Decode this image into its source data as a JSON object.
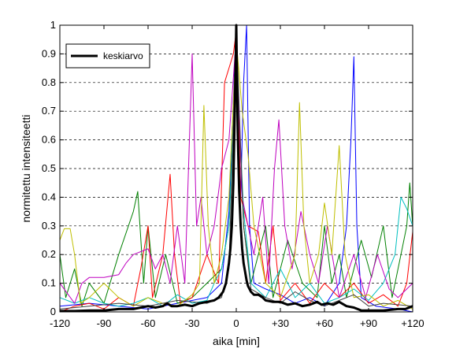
{
  "chart_data": {
    "type": "line",
    "xlabel": "aika [min]",
    "ylabel": "normitettu intensiteetti",
    "xlim": [
      -120,
      120
    ],
    "ylim": [
      0,
      1
    ],
    "x_ticks": [
      {
        "value": -120,
        "label": "-120"
      },
      {
        "value": -90,
        "label": "-90"
      },
      {
        "value": -60,
        "label": "-60"
      },
      {
        "value": -30,
        "label": "-30"
      },
      {
        "value": 0,
        "label": "0"
      },
      {
        "value": 30,
        "label": "+30"
      },
      {
        "value": 60,
        "label": "+60"
      },
      {
        "value": 90,
        "label": "+90"
      },
      {
        "value": 120,
        "label": "+120"
      }
    ],
    "y_ticks": [
      {
        "value": 0,
        "label": "0"
      },
      {
        "value": 0.1,
        "label": "0.1"
      },
      {
        "value": 0.2,
        "label": "0.2"
      },
      {
        "value": 0.3,
        "label": "0.3"
      },
      {
        "value": 0.4,
        "label": "0.4"
      },
      {
        "value": 0.5,
        "label": "0.5"
      },
      {
        "value": 0.6,
        "label": "0.6"
      },
      {
        "value": 0.7,
        "label": "0.7"
      },
      {
        "value": 0.8,
        "label": "0.8"
      },
      {
        "value": 0.9,
        "label": "0.9"
      },
      {
        "value": 1,
        "label": "1"
      }
    ],
    "grid": "horizontal dashed",
    "legend": {
      "placement": "top-left",
      "entries": [
        {
          "label": "keskiarvo",
          "color": "#000000"
        }
      ]
    },
    "mean_series": {
      "name": "keskiarvo",
      "color": "#000000",
      "points": [
        [
          -120,
          0.003
        ],
        [
          -110,
          0.003
        ],
        [
          -100,
          0.005
        ],
        [
          -90,
          0.005
        ],
        [
          -80,
          0.01
        ],
        [
          -70,
          0.01
        ],
        [
          -65,
          0.015
        ],
        [
          -60,
          0.02
        ],
        [
          -55,
          0.015
        ],
        [
          -50,
          0.02
        ],
        [
          -47,
          0.03
        ],
        [
          -44,
          0.02
        ],
        [
          -40,
          0.02
        ],
        [
          -35,
          0.025
        ],
        [
          -30,
          0.02
        ],
        [
          -25,
          0.03
        ],
        [
          -20,
          0.035
        ],
        [
          -15,
          0.04
        ],
        [
          -12,
          0.05
        ],
        [
          -9,
          0.07
        ],
        [
          -7,
          0.1
        ],
        [
          -5,
          0.17
        ],
        [
          -4,
          0.22
        ],
        [
          -3,
          0.3
        ],
        [
          -2,
          0.45
        ],
        [
          -1,
          0.7
        ],
        [
          0,
          1.0
        ],
        [
          1,
          0.62
        ],
        [
          2,
          0.42
        ],
        [
          3,
          0.3
        ],
        [
          4,
          0.22
        ],
        [
          5,
          0.17
        ],
        [
          6,
          0.14
        ],
        [
          7,
          0.11
        ],
        [
          8,
          0.09
        ],
        [
          10,
          0.07
        ],
        [
          12,
          0.06
        ],
        [
          15,
          0.06
        ],
        [
          18,
          0.05
        ],
        [
          20,
          0.04
        ],
        [
          25,
          0.035
        ],
        [
          30,
          0.035
        ],
        [
          35,
          0.025
        ],
        [
          40,
          0.03
        ],
        [
          45,
          0.02
        ],
        [
          50,
          0.025
        ],
        [
          55,
          0.035
        ],
        [
          58,
          0.025
        ],
        [
          62,
          0.03
        ],
        [
          66,
          0.025
        ],
        [
          70,
          0.035
        ],
        [
          75,
          0.02
        ],
        [
          80,
          0.015
        ],
        [
          85,
          0.005
        ],
        [
          90,
          0.005
        ],
        [
          100,
          0.005
        ],
        [
          110,
          0.01
        ],
        [
          115,
          0.01
        ],
        [
          120,
          0.02
        ]
      ]
    },
    "individual_series": [
      {
        "color": "#0000ff",
        "points": [
          [
            -120,
            0.02
          ],
          [
            -100,
            0.03
          ],
          [
            -80,
            0.02
          ],
          [
            -60,
            0.01
          ],
          [
            -40,
            0.03
          ],
          [
            -20,
            0.05
          ],
          [
            -10,
            0.1
          ],
          [
            -5,
            0.35
          ],
          [
            0,
            1.0
          ],
          [
            3,
            0.4
          ],
          [
            5,
            0.8
          ],
          [
            7,
            1.0
          ],
          [
            9,
            0.3
          ],
          [
            12,
            0.1
          ],
          [
            20,
            0.08
          ],
          [
            30,
            0.06
          ],
          [
            40,
            0.03
          ],
          [
            50,
            0.05
          ],
          [
            60,
            0.02
          ],
          [
            70,
            0.1
          ],
          [
            75,
            0.3
          ],
          [
            78,
            0.6
          ],
          [
            80,
            0.89
          ],
          [
            82,
            0.3
          ],
          [
            85,
            0.05
          ],
          [
            95,
            0.02
          ],
          [
            110,
            0.01
          ],
          [
            120,
            0.0
          ]
        ]
      },
      {
        "color": "#008000",
        "points": [
          [
            -120,
            0.2
          ],
          [
            -116,
            0.05
          ],
          [
            -110,
            0.15
          ],
          [
            -105,
            0.02
          ],
          [
            -100,
            0.1
          ],
          [
            -90,
            0.03
          ],
          [
            -80,
            0.2
          ],
          [
            -70,
            0.35
          ],
          [
            -67,
            0.42
          ],
          [
            -63,
            0.1
          ],
          [
            -60,
            0.3
          ],
          [
            -55,
            0.05
          ],
          [
            -48,
            0.2
          ],
          [
            -40,
            0.03
          ],
          [
            -30,
            0.05
          ],
          [
            -20,
            0.1
          ],
          [
            -10,
            0.15
          ],
          [
            -5,
            0.3
          ],
          [
            0,
            0.9
          ],
          [
            5,
            0.3
          ],
          [
            10,
            0.1
          ],
          [
            20,
            0.3
          ],
          [
            25,
            0.05
          ],
          [
            35,
            0.25
          ],
          [
            45,
            0.1
          ],
          [
            55,
            0.05
          ],
          [
            60,
            0.3
          ],
          [
            65,
            0.1
          ],
          [
            70,
            0.2
          ],
          [
            75,
            0.05
          ],
          [
            85,
            0.25
          ],
          [
            92,
            0.12
          ],
          [
            100,
            0.3
          ],
          [
            106,
            0.05
          ],
          [
            112,
            0.2
          ],
          [
            116,
            0.3
          ],
          [
            118,
            0.45
          ],
          [
            120,
            0.3
          ]
        ]
      },
      {
        "color": "#ff0000",
        "points": [
          [
            -120,
            0.0
          ],
          [
            -110,
            0.02
          ],
          [
            -100,
            0.03
          ],
          [
            -90,
            0.01
          ],
          [
            -80,
            0.05
          ],
          [
            -70,
            0.02
          ],
          [
            -65,
            0.15
          ],
          [
            -60,
            0.3
          ],
          [
            -57,
            0.05
          ],
          [
            -50,
            0.2
          ],
          [
            -45,
            0.48
          ],
          [
            -42,
            0.2
          ],
          [
            -38,
            0.03
          ],
          [
            -30,
            0.05
          ],
          [
            -20,
            0.2
          ],
          [
            -12,
            0.1
          ],
          [
            -8,
            0.8
          ],
          [
            -5,
            0.85
          ],
          [
            -2,
            0.9
          ],
          [
            0,
            0.98
          ],
          [
            3,
            0.4
          ],
          [
            8,
            0.3
          ],
          [
            15,
            0.28
          ],
          [
            20,
            0.1
          ],
          [
            25,
            0.3
          ],
          [
            30,
            0.04
          ],
          [
            40,
            0.1
          ],
          [
            50,
            0.03
          ],
          [
            60,
            0.1
          ],
          [
            70,
            0.05
          ],
          [
            80,
            0.1
          ],
          [
            90,
            0.03
          ],
          [
            100,
            0.06
          ],
          [
            110,
            0.02
          ],
          [
            116,
            0.1
          ],
          [
            120,
            0.28
          ]
        ]
      },
      {
        "color": "#00bfbf",
        "points": [
          [
            -120,
            0.05
          ],
          [
            -110,
            0.03
          ],
          [
            -100,
            0.05
          ],
          [
            -90,
            0.03
          ],
          [
            -80,
            0.02
          ],
          [
            -70,
            0.03
          ],
          [
            -60,
            0.05
          ],
          [
            -50,
            0.02
          ],
          [
            -40,
            0.06
          ],
          [
            -30,
            0.03
          ],
          [
            -20,
            0.04
          ],
          [
            -15,
            0.1
          ],
          [
            -10,
            0.15
          ],
          [
            -5,
            0.3
          ],
          [
            0,
            0.9
          ],
          [
            5,
            0.35
          ],
          [
            10,
            0.1
          ],
          [
            20,
            0.05
          ],
          [
            30,
            0.15
          ],
          [
            40,
            0.05
          ],
          [
            50,
            0.1
          ],
          [
            60,
            0.03
          ],
          [
            70,
            0.05
          ],
          [
            80,
            0.08
          ],
          [
            90,
            0.04
          ],
          [
            100,
            0.1
          ],
          [
            108,
            0.2
          ],
          [
            112,
            0.4
          ],
          [
            116,
            0.36
          ],
          [
            120,
            0.3
          ]
        ]
      },
      {
        "color": "#bf00bf",
        "points": [
          [
            -120,
            0.1
          ],
          [
            -110,
            0.03
          ],
          [
            -105,
            0.1
          ],
          [
            -100,
            0.12
          ],
          [
            -90,
            0.12
          ],
          [
            -80,
            0.13
          ],
          [
            -75,
            0.17
          ],
          [
            -70,
            0.2
          ],
          [
            -60,
            0.22
          ],
          [
            -55,
            0.15
          ],
          [
            -50,
            0.2
          ],
          [
            -45,
            0.1
          ],
          [
            -40,
            0.3
          ],
          [
            -35,
            0.1
          ],
          [
            -30,
            0.9
          ],
          [
            -27,
            0.3
          ],
          [
            -24,
            0.4
          ],
          [
            -20,
            0.2
          ],
          [
            -15,
            0.3
          ],
          [
            -10,
            0.5
          ],
          [
            -5,
            0.6
          ],
          [
            0,
            0.96
          ],
          [
            4,
            0.4
          ],
          [
            8,
            0.3
          ],
          [
            12,
            0.2
          ],
          [
            18,
            0.4
          ],
          [
            22,
            0.1
          ],
          [
            26,
            0.5
          ],
          [
            29,
            0.67
          ],
          [
            33,
            0.3
          ],
          [
            38,
            0.15
          ],
          [
            44,
            0.35
          ],
          [
            50,
            0.2
          ],
          [
            56,
            0.1
          ],
          [
            62,
            0.3
          ],
          [
            70,
            0.05
          ],
          [
            80,
            0.2
          ],
          [
            88,
            0.05
          ],
          [
            96,
            0.2
          ],
          [
            104,
            0.08
          ],
          [
            110,
            0.05
          ],
          [
            120,
            0.1
          ]
        ]
      },
      {
        "color": "#bfbf00",
        "points": [
          [
            -120,
            0.25
          ],
          [
            -117,
            0.29
          ],
          [
            -113,
            0.29
          ],
          [
            -110,
            0.2
          ],
          [
            -106,
            0.03
          ],
          [
            -100,
            0.05
          ],
          [
            -90,
            0.1
          ],
          [
            -80,
            0.05
          ],
          [
            -70,
            0.02
          ],
          [
            -60,
            0.05
          ],
          [
            -50,
            0.03
          ],
          [
            -40,
            0.02
          ],
          [
            -30,
            0.06
          ],
          [
            -25,
            0.1
          ],
          [
            -22,
            0.72
          ],
          [
            -19,
            0.3
          ],
          [
            -15,
            0.1
          ],
          [
            -10,
            0.2
          ],
          [
            -5,
            0.4
          ],
          [
            0,
            0.95
          ],
          [
            4,
            0.7
          ],
          [
            8,
            0.55
          ],
          [
            12,
            0.3
          ],
          [
            20,
            0.1
          ],
          [
            30,
            0.05
          ],
          [
            40,
            0.2
          ],
          [
            43,
            0.73
          ],
          [
            46,
            0.3
          ],
          [
            50,
            0.1
          ],
          [
            56,
            0.2
          ],
          [
            60,
            0.38
          ],
          [
            65,
            0.2
          ],
          [
            70,
            0.58
          ],
          [
            74,
            0.2
          ],
          [
            80,
            0.05
          ],
          [
            90,
            0.06
          ],
          [
            100,
            0.02
          ],
          [
            110,
            0.04
          ],
          [
            120,
            0.01
          ]
        ]
      },
      {
        "color": "#404040",
        "points": [
          [
            -120,
            0.01
          ],
          [
            -100,
            0.02
          ],
          [
            -80,
            0.03
          ],
          [
            -60,
            0.02
          ],
          [
            -40,
            0.04
          ],
          [
            -20,
            0.03
          ],
          [
            -10,
            0.05
          ],
          [
            -5,
            0.15
          ],
          [
            0,
            0.99
          ],
          [
            5,
            0.3
          ],
          [
            10,
            0.08
          ],
          [
            20,
            0.05
          ],
          [
            30,
            0.03
          ],
          [
            40,
            0.07
          ],
          [
            50,
            0.04
          ],
          [
            60,
            0.02
          ],
          [
            70,
            0.04
          ],
          [
            80,
            0.06
          ],
          [
            90,
            0.02
          ],
          [
            100,
            0.03
          ],
          [
            120,
            0.02
          ]
        ]
      }
    ]
  }
}
